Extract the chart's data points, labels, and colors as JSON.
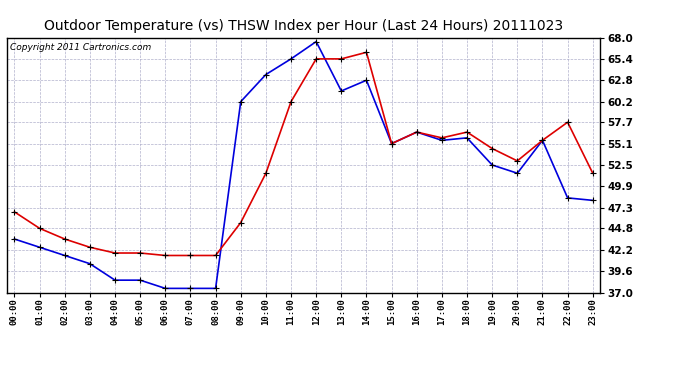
{
  "title": "Outdoor Temperature (vs) THSW Index per Hour (Last 24 Hours) 20111023",
  "copyright": "Copyright 2011 Cartronics.com",
  "hours": [
    0,
    1,
    2,
    3,
    4,
    5,
    6,
    7,
    8,
    9,
    10,
    11,
    12,
    13,
    14,
    15,
    16,
    17,
    18,
    19,
    20,
    21,
    22,
    23
  ],
  "temp": [
    46.8,
    44.8,
    43.5,
    42.5,
    41.8,
    41.8,
    41.5,
    41.5,
    41.5,
    45.5,
    51.5,
    60.2,
    65.4,
    65.4,
    66.2,
    55.1,
    56.5,
    55.8,
    56.5,
    54.5,
    53.0,
    55.5,
    57.7,
    51.5
  ],
  "thsw": [
    43.5,
    42.5,
    41.5,
    40.5,
    38.5,
    38.5,
    37.5,
    37.5,
    37.5,
    60.2,
    63.5,
    65.4,
    67.5,
    61.5,
    62.8,
    55.1,
    56.5,
    55.5,
    55.8,
    52.5,
    51.5,
    55.5,
    48.5,
    48.2
  ],
  "ylim": [
    37.0,
    68.0
  ],
  "yticks": [
    37.0,
    39.6,
    42.2,
    44.8,
    47.3,
    49.9,
    52.5,
    55.1,
    57.7,
    60.2,
    62.8,
    65.4,
    68.0
  ],
  "temp_color": "#dd0000",
  "thsw_color": "#0000dd",
  "bg_color": "#ffffff",
  "grid_color": "#b0b0cc",
  "title_fontsize": 10,
  "copyright_fontsize": 6.5
}
